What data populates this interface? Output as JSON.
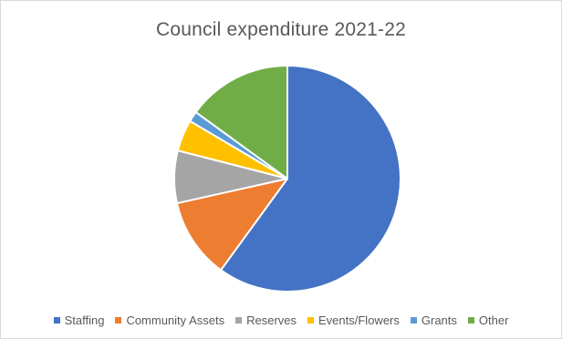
{
  "chart_data": {
    "type": "pie",
    "title": "Council expenditure 2021-22",
    "legend_position": "bottom",
    "categories": [
      "Staffing",
      "Community Assets",
      "Reserves",
      "Events/Flowers",
      "Grants",
      "Other"
    ],
    "values": [
      60,
      11.5,
      7.5,
      4.5,
      1.5,
      15
    ],
    "colors": [
      "#4472C4",
      "#ED7D31",
      "#A5A5A5",
      "#FFC000",
      "#5B9BD5",
      "#70AD47"
    ]
  }
}
